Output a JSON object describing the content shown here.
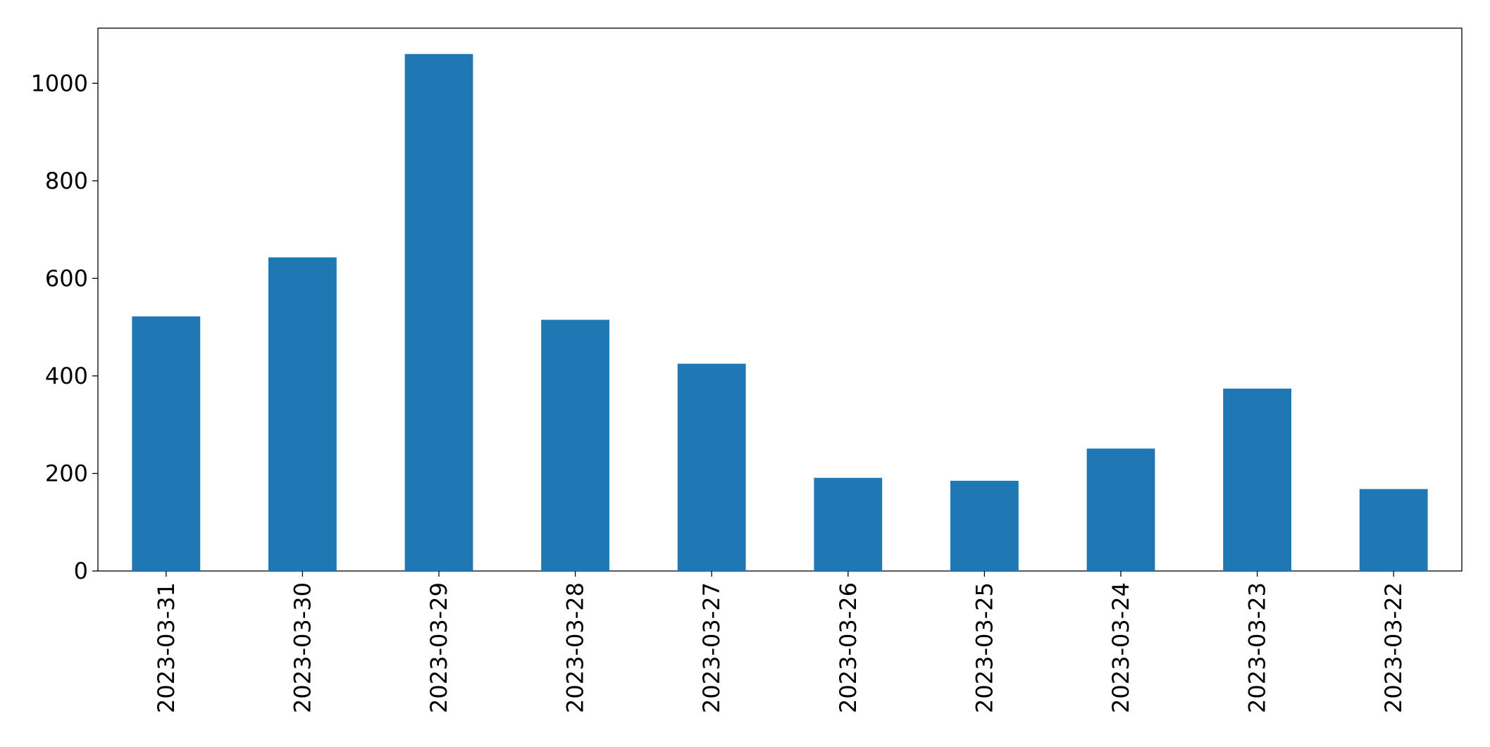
{
  "chart_data": {
    "type": "bar",
    "categories": [
      "2023-03-31",
      "2023-03-30",
      "2023-03-29",
      "2023-03-28",
      "2023-03-27",
      "2023-03-26",
      "2023-03-25",
      "2023-03-24",
      "2023-03-23",
      "2023-03-22"
    ],
    "values": [
      522,
      643,
      1060,
      515,
      425,
      191,
      185,
      251,
      374,
      168
    ],
    "color": "#1f77b4",
    "ylim": [
      0,
      1113
    ],
    "yticks": [
      0,
      200,
      400,
      600,
      800,
      1000
    ],
    "grid": false
  }
}
